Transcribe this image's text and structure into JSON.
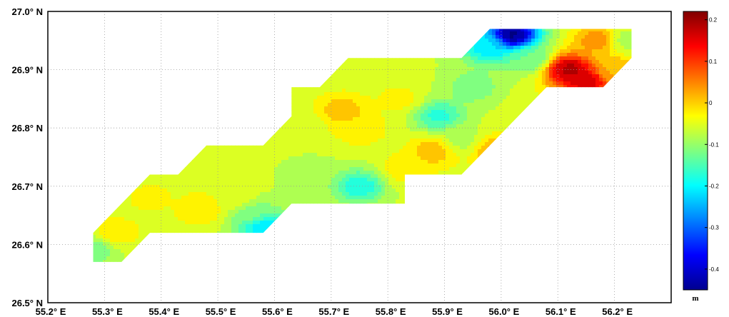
{
  "chart_data": {
    "type": "heatmap",
    "title": "",
    "xlabel": "",
    "ylabel": "",
    "x_ticks": [
      55.2,
      55.3,
      55.4,
      55.5,
      55.6,
      55.7,
      55.8,
      55.9,
      56.0,
      56.1,
      56.2
    ],
    "x_tick_labels": [
      "55.2° E",
      "55.3° E",
      "55.4° E",
      "55.5° E",
      "55.6° E",
      "55.7° E",
      "55.8° E",
      "55.9° E",
      "56.0° E",
      "56.1° E",
      "56.2° E"
    ],
    "y_ticks": [
      26.5,
      26.6,
      26.7,
      26.8,
      26.9,
      27.0
    ],
    "y_tick_labels": [
      "26.5° N",
      "26.6° N",
      "26.7° N",
      "26.8° N",
      "26.9° N",
      "27.0° N"
    ],
    "xlim": [
      55.2,
      56.3
    ],
    "ylim": [
      26.5,
      27.0
    ],
    "grid": true,
    "colorbar": {
      "unit": "m",
      "range": [
        -0.45,
        0.22
      ],
      "ticks": [
        0.2,
        0.1,
        0,
        -0.1,
        -0.2,
        -0.3,
        -0.4
      ],
      "tick_labels": [
        "0.2",
        "0.1",
        "0",
        "-0.1",
        "-0.2",
        "-0.3",
        "-0.4"
      ],
      "colormap": "jet"
    },
    "region_outline": [
      [
        55.28,
        26.57
      ],
      [
        55.28,
        26.62
      ],
      [
        55.33,
        26.67
      ],
      [
        55.38,
        26.72
      ],
      [
        55.43,
        26.72
      ],
      [
        55.48,
        26.77
      ],
      [
        55.58,
        26.77
      ],
      [
        55.63,
        26.82
      ],
      [
        55.63,
        26.87
      ],
      [
        55.68,
        26.87
      ],
      [
        55.73,
        26.92
      ],
      [
        55.93,
        26.92
      ],
      [
        55.98,
        26.97
      ],
      [
        56.23,
        26.97
      ],
      [
        56.23,
        26.92
      ],
      [
        56.18,
        26.87
      ],
      [
        56.08,
        26.87
      ],
      [
        56.03,
        26.82
      ],
      [
        55.98,
        26.77
      ],
      [
        55.93,
        26.72
      ],
      [
        55.83,
        26.72
      ],
      [
        55.83,
        26.67
      ],
      [
        55.63,
        26.67
      ],
      [
        55.58,
        26.62
      ],
      [
        55.38,
        26.62
      ],
      [
        55.33,
        26.57
      ]
    ],
    "value_features": [
      {
        "lon": 55.38,
        "lat": 26.68,
        "value": -0.03
      },
      {
        "lon": 55.32,
        "lat": 26.62,
        "value": -0.02
      },
      {
        "lon": 55.47,
        "lat": 26.66,
        "value": -0.01
      },
      {
        "lon": 55.53,
        "lat": 26.68,
        "value": -0.05
      },
      {
        "lon": 55.56,
        "lat": 26.65,
        "value": -0.12
      },
      {
        "lon": 55.58,
        "lat": 26.63,
        "value": -0.22
      },
      {
        "lon": 55.66,
        "lat": 26.72,
        "value": -0.1
      },
      {
        "lon": 55.75,
        "lat": 26.7,
        "value": -0.18
      },
      {
        "lon": 55.72,
        "lat": 26.83,
        "value": 0.01
      },
      {
        "lon": 55.75,
        "lat": 26.8,
        "value": -0.01
      },
      {
        "lon": 55.83,
        "lat": 26.73,
        "value": -0.02
      },
      {
        "lon": 55.82,
        "lat": 26.85,
        "value": -0.03
      },
      {
        "lon": 55.89,
        "lat": 26.82,
        "value": -0.17
      },
      {
        "lon": 55.88,
        "lat": 26.76,
        "value": 0.01
      },
      {
        "lon": 55.95,
        "lat": 26.87,
        "value": -0.12
      },
      {
        "lon": 55.93,
        "lat": 26.78,
        "value": -0.08
      },
      {
        "lon": 55.99,
        "lat": 26.76,
        "value": 0.03
      },
      {
        "lon": 56.03,
        "lat": 26.73,
        "value": -0.03
      },
      {
        "lon": 56.02,
        "lat": 26.96,
        "value": -0.45
      },
      {
        "lon": 55.98,
        "lat": 26.94,
        "value": -0.22
      },
      {
        "lon": 56.05,
        "lat": 26.92,
        "value": -0.13
      },
      {
        "lon": 56.12,
        "lat": 26.9,
        "value": 0.19
      },
      {
        "lon": 56.15,
        "lat": 26.88,
        "value": 0.17
      },
      {
        "lon": 56.17,
        "lat": 26.95,
        "value": 0.04
      },
      {
        "lon": 56.22,
        "lat": 26.95,
        "value": -0.08
      },
      {
        "lon": 56.2,
        "lat": 26.9,
        "value": 0.02
      },
      {
        "lon": 55.65,
        "lat": 26.8,
        "value": -0.05
      },
      {
        "lon": 55.28,
        "lat": 26.59,
        "value": -0.12
      }
    ],
    "background_value": -0.06
  }
}
